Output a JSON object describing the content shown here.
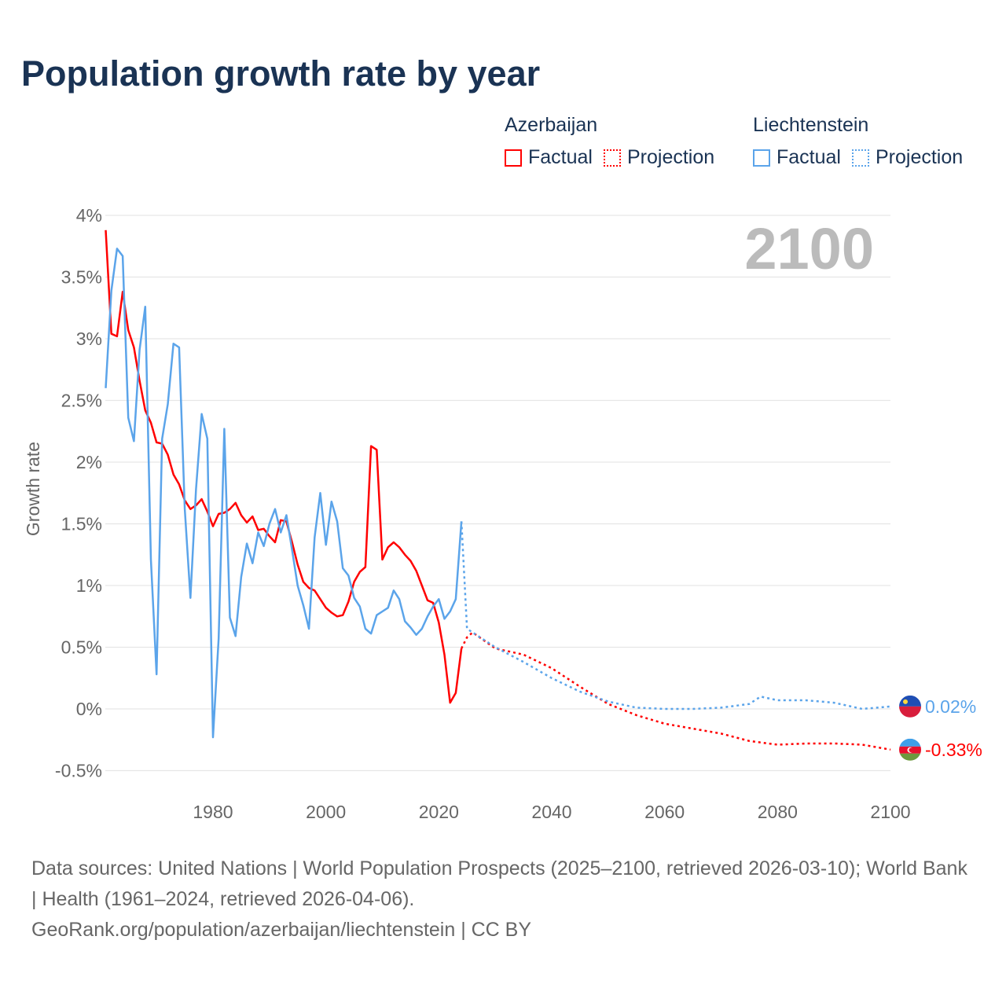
{
  "title": "Population growth rate by year",
  "legend": {
    "groups": [
      {
        "name": "Azerbaijan",
        "factual": "Factual",
        "projection": "Projection",
        "color": "#ff0000"
      },
      {
        "name": "Liechtenstein",
        "factual": "Factual",
        "projection": "Projection",
        "color": "#5ba4ea"
      }
    ]
  },
  "footer": {
    "line1": "Data sources: United Nations | World Population Prospects (2025–2100, retrieved 2026-03-10); World Bank | Health (1961–2024, retrieved 2026-04-06).",
    "line2": "GeoRank.org/population/azerbaijan/liechtenstein | CC BY"
  },
  "chart_data": {
    "type": "line",
    "title": "Population growth rate by year",
    "ylabel": "Growth rate",
    "xlabel": "",
    "year_label": "2100",
    "xlim": [
      1961,
      2100
    ],
    "ylim": [
      -0.5,
      4
    ],
    "x_ticks": [
      1980,
      2000,
      2020,
      2040,
      2060,
      2080,
      2100
    ],
    "y_ticks": [
      {
        "v": 4,
        "l": "4%"
      },
      {
        "v": 3.5,
        "l": "3.5%"
      },
      {
        "v": 3,
        "l": "3%"
      },
      {
        "v": 2.5,
        "l": "2.5%"
      },
      {
        "v": 2,
        "l": "2%"
      },
      {
        "v": 1.5,
        "l": "1.5%"
      },
      {
        "v": 1,
        "l": "1%"
      },
      {
        "v": 0.5,
        "l": "0.5%"
      },
      {
        "v": 0,
        "l": "0%"
      },
      {
        "v": -0.5,
        "l": "-0.5%"
      }
    ],
    "series": [
      {
        "name": "Azerbaijan",
        "color": "#ff0000",
        "end_label": "-0.33%",
        "factual_start": 1961,
        "factual": [
          3.88,
          3.04,
          3.02,
          3.38,
          3.07,
          2.93,
          2.66,
          2.42,
          2.32,
          2.16,
          2.15,
          2.06,
          1.9,
          1.82,
          1.69,
          1.62,
          1.65,
          1.7,
          1.6,
          1.48,
          1.58,
          1.59,
          1.62,
          1.67,
          1.57,
          1.51,
          1.56,
          1.45,
          1.46,
          1.4,
          1.35,
          1.53,
          1.52,
          1.35,
          1.17,
          1.03,
          0.98,
          0.96,
          0.89,
          0.82,
          0.78,
          0.75,
          0.76,
          0.87,
          1.03,
          1.11,
          1.15,
          2.13,
          2.1,
          1.21,
          1.31,
          1.35,
          1.31,
          1.25,
          1.2,
          1.12,
          1.0,
          0.88,
          0.86,
          0.7,
          0.44,
          0.05,
          0.13,
          0.49
        ],
        "projection": [
          [
            2024,
            0.49
          ],
          [
            2025,
            0.58
          ],
          [
            2026,
            0.62
          ],
          [
            2030,
            0.49
          ],
          [
            2035,
            0.44
          ],
          [
            2040,
            0.33
          ],
          [
            2045,
            0.18
          ],
          [
            2050,
            0.04
          ],
          [
            2055,
            -0.05
          ],
          [
            2060,
            -0.12
          ],
          [
            2065,
            -0.16
          ],
          [
            2070,
            -0.2
          ],
          [
            2075,
            -0.26
          ],
          [
            2080,
            -0.29
          ],
          [
            2085,
            -0.28
          ],
          [
            2090,
            -0.28
          ],
          [
            2095,
            -0.29
          ],
          [
            2100,
            -0.33
          ]
        ]
      },
      {
        "name": "Liechtenstein",
        "color": "#5ba4ea",
        "end_label": "0.02%",
        "factual_start": 1961,
        "factual": [
          2.6,
          3.39,
          3.73,
          3.67,
          2.36,
          2.17,
          2.91,
          3.26,
          1.21,
          0.28,
          2.19,
          2.47,
          2.96,
          2.93,
          1.62,
          0.9,
          1.78,
          2.39,
          2.19,
          -0.23,
          0.57,
          2.27,
          0.74,
          0.59,
          1.07,
          1.34,
          1.18,
          1.43,
          1.32,
          1.5,
          1.62,
          1.43,
          1.57,
          1.29,
          1.0,
          0.84,
          0.65,
          1.39,
          1.75,
          1.33,
          1.68,
          1.52,
          1.14,
          1.08,
          0.9,
          0.83,
          0.65,
          0.61,
          0.76,
          0.79,
          0.82,
          0.96,
          0.89,
          0.71,
          0.66,
          0.6,
          0.65,
          0.75,
          0.83,
          0.89,
          0.73,
          0.79,
          0.89,
          1.52
        ],
        "projection": [
          [
            2024,
            1.52
          ],
          [
            2025,
            0.65
          ],
          [
            2030,
            0.5
          ],
          [
            2035,
            0.38
          ],
          [
            2040,
            0.25
          ],
          [
            2045,
            0.14
          ],
          [
            2050,
            0.06
          ],
          [
            2055,
            0.01
          ],
          [
            2060,
            0.0
          ],
          [
            2065,
            0.0
          ],
          [
            2070,
            0.01
          ],
          [
            2075,
            0.04
          ],
          [
            2077,
            0.1
          ],
          [
            2080,
            0.07
          ],
          [
            2085,
            0.07
          ],
          [
            2090,
            0.05
          ],
          [
            2095,
            0.0
          ],
          [
            2100,
            0.02
          ]
        ]
      }
    ]
  }
}
